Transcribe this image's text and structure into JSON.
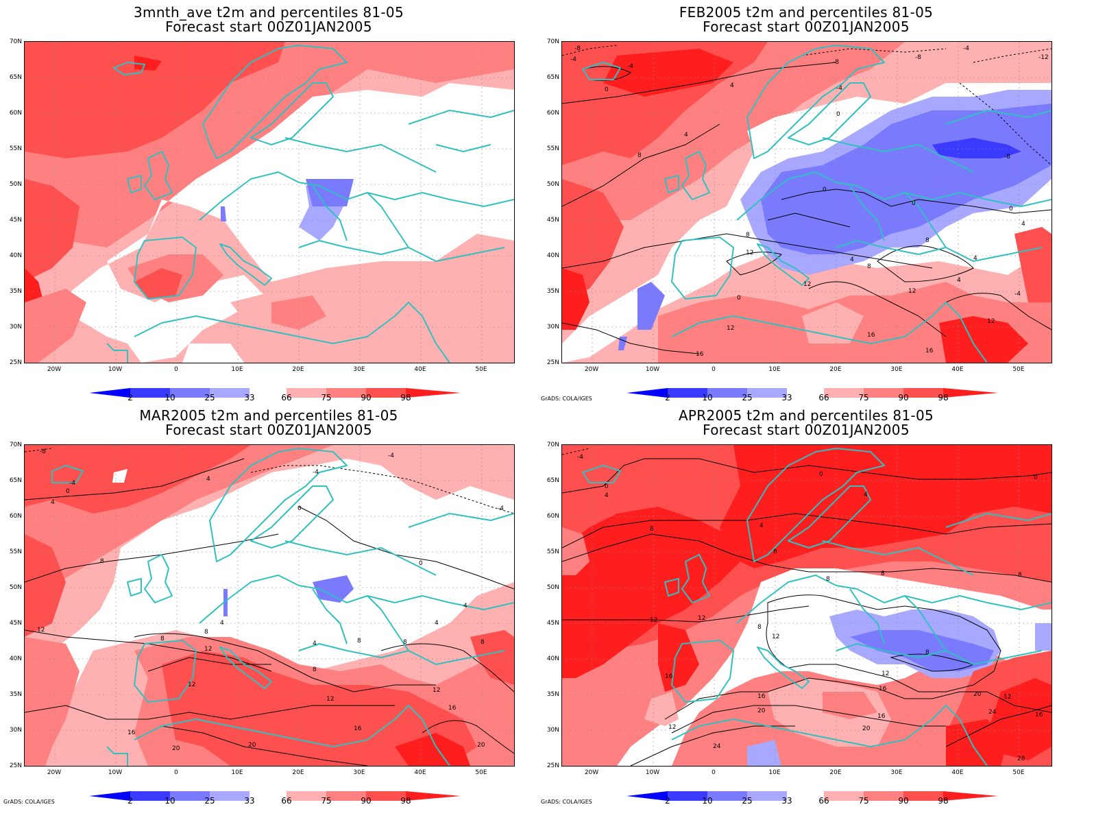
{
  "panels": [
    {
      "title_line1": "3mnth_ave t2m and percentiles 81-05",
      "title_line2": "Forecast start 00Z01JAN2005",
      "credit": "",
      "contours": []
    },
    {
      "title_line1": "FEB2005 t2m and percentiles 81-05",
      "title_line2": "Forecast start 00Z01JAN2005",
      "credit": "GrADS: COLA/IGES",
      "contours": [
        "-8",
        "-4",
        "-8",
        "-8",
        "-4",
        "-12",
        "-4",
        "0",
        "4",
        "-4",
        "0",
        "4",
        "8",
        "-8",
        "0",
        "0",
        "0",
        "4",
        "8",
        "4",
        "12",
        "8",
        "12",
        "12",
        "8",
        "4",
        "4",
        "-4",
        "0",
        "12",
        "12",
        "16",
        "16",
        "16"
      ]
    },
    {
      "title_line1": "MAR2005 t2m and percentiles 81-05",
      "title_line2": "Forecast start 00Z01JAN2005",
      "credit": "GrADS: COLA/IGES",
      "contours": [
        "-8",
        "-4",
        "-4",
        "0",
        "4",
        "4",
        "-4",
        "-4",
        "0",
        "8",
        "0",
        "4",
        "4",
        "8",
        "12",
        "4",
        "8",
        "8",
        "8",
        "4",
        "12",
        "8",
        "12",
        "8",
        "12",
        "12",
        "16",
        "16",
        "16",
        "20",
        "20",
        "20"
      ]
    },
    {
      "title_line1": "APR2005 t2m and percentiles 81-05",
      "title_line2": "Forecast start 00Z01JAN2005",
      "credit": "GrADS: COLA/IGES",
      "contours": [
        "-4",
        "0",
        "4",
        "0",
        "4",
        "0",
        "4",
        "8",
        "8",
        "8",
        "8",
        "8",
        "12",
        "12",
        "8",
        "12",
        "12",
        "8",
        "16",
        "16",
        "16",
        "20",
        "20",
        "16",
        "12",
        "20",
        "24",
        "24",
        "28",
        "16",
        "12"
      ]
    }
  ],
  "axes": {
    "lat_labels": [
      "70N",
      "65N",
      "60N",
      "55N",
      "50N",
      "45N",
      "40N",
      "35N",
      "30N",
      "25N"
    ],
    "lon_labels": [
      "20W",
      "10W",
      "0",
      "10E",
      "20E",
      "30E",
      "40E",
      "50E"
    ]
  },
  "colorbar": {
    "labels": [
      "2",
      "10",
      "25",
      "33",
      "66",
      "75",
      "90",
      "98"
    ],
    "colors_below": [
      "#0000ff",
      "#3b3bff",
      "#7a7aff",
      "#a8a8ff"
    ],
    "colors_above": [
      "#ffb0b0",
      "#ff8080",
      "#ff5050",
      "#ff1e1e"
    ]
  },
  "colors": {
    "coast": "#30c0c0",
    "contour": "#000000",
    "red_light": "#ffb0b0",
    "red_mid": "#ff8080",
    "red_strong": "#ff5050",
    "red_max": "#ff1e1e",
    "blue_light": "#a8a8ff",
    "blue_mid": "#7a7aff",
    "blue_strong": "#3b3bff"
  }
}
